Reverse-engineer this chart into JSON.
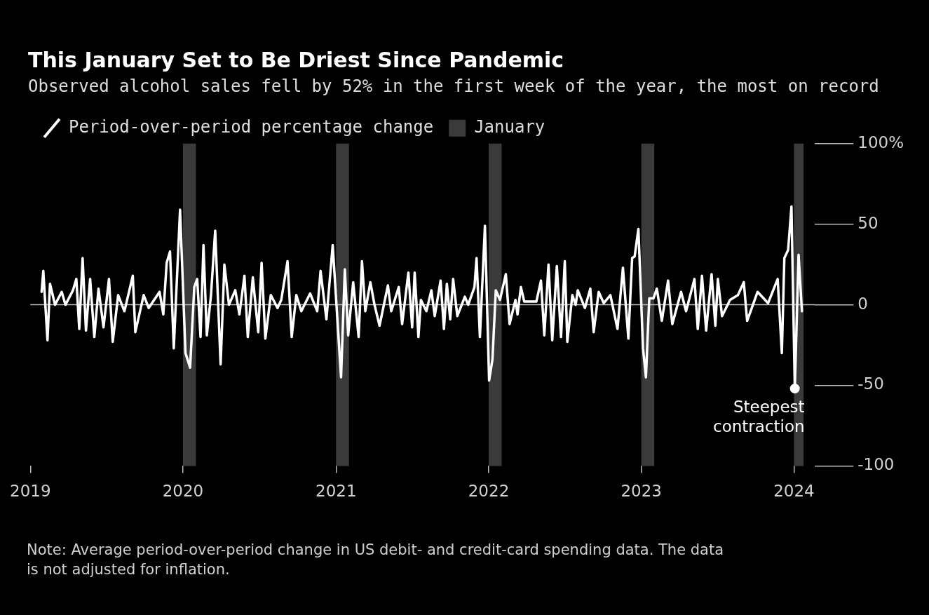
{
  "chart_data": {
    "type": "line",
    "title": "This January Set to Be Driest Since Pandemic",
    "subtitle": "Observed alcohol sales fell by 52% in the first week of the year, the most on record",
    "x": [
      "2019-01-28",
      "2019-02-01",
      "2019-02-11",
      "2019-02-17",
      "2019-03-01",
      "2019-03-17",
      "2019-03-26",
      "2019-04-13",
      "2019-04-21",
      "2019-04-28",
      "2019-05-06",
      "2019-05-14",
      "2019-05-24",
      "2019-06-03",
      "2019-06-13",
      "2019-06-25",
      "2019-07-08",
      "2019-07-17",
      "2019-07-30",
      "2019-08-14",
      "2019-09-03",
      "2019-09-09",
      "2019-09-29",
      "2019-10-11",
      "2019-11-06",
      "2019-11-15",
      "2019-11-23",
      "2019-12-01",
      "2019-12-10",
      "2019-12-25",
      "2020-01-07",
      "2020-01-18",
      "2020-01-28",
      "2020-02-04",
      "2020-02-12",
      "2020-02-19",
      "2020-02-27",
      "2020-03-08",
      "2020-03-18",
      "2020-03-31",
      "2020-04-09",
      "2020-04-20",
      "2020-05-05",
      "2020-05-15",
      "2020-05-27",
      "2020-06-04",
      "2020-06-16",
      "2020-06-29",
      "2020-07-07",
      "2020-07-16",
      "2020-07-29",
      "2020-08-14",
      "2020-08-23",
      "2020-09-07",
      "2020-09-17",
      "2020-09-28",
      "2020-10-10",
      "2020-10-31",
      "2020-11-17",
      "2020-11-25",
      "2020-12-09",
      "2020-12-24",
      "2021-01-13",
      "2021-01-22",
      "2021-01-30",
      "2021-02-11",
      "2021-02-24",
      "2021-03-04",
      "2021-03-12",
      "2021-03-24",
      "2021-04-03",
      "2021-04-15",
      "2021-05-05",
      "2021-05-13",
      "2021-05-31",
      "2021-06-08",
      "2021-06-23",
      "2021-07-02",
      "2021-07-08",
      "2021-07-17",
      "2021-07-23",
      "2021-08-05",
      "2021-08-17",
      "2021-08-25",
      "2021-09-08",
      "2021-09-16",
      "2021-09-23",
      "2021-10-01",
      "2021-10-08",
      "2021-10-18",
      "2021-11-05",
      "2021-11-13",
      "2021-11-28",
      "2021-12-03",
      "2021-12-11",
      "2021-12-23",
      "2022-01-02",
      "2022-01-10",
      "2022-01-18",
      "2022-01-28",
      "2022-02-11",
      "2022-02-20",
      "2022-03-06",
      "2022-03-11",
      "2022-03-19",
      "2022-03-27",
      "2022-04-25",
      "2022-05-06",
      "2022-05-14",
      "2022-05-24",
      "2022-06-02",
      "2022-06-13",
      "2022-06-23",
      "2022-07-02",
      "2022-07-08",
      "2022-07-20",
      "2022-07-28",
      "2022-08-02",
      "2022-08-19",
      "2022-09-01",
      "2022-09-09",
      "2022-09-21",
      "2022-10-03",
      "2022-10-19",
      "2022-11-05",
      "2022-11-18",
      "2022-12-01",
      "2022-12-10",
      "2022-12-16",
      "2022-12-25",
      "2023-01-05",
      "2023-01-12",
      "2023-01-20",
      "2023-01-30",
      "2023-02-07",
      "2023-02-19",
      "2023-03-06",
      "2023-03-16",
      "2023-04-06",
      "2023-04-18",
      "2023-05-08",
      "2023-05-16",
      "2023-05-26",
      "2023-06-05",
      "2023-06-18",
      "2023-06-27",
      "2023-07-03",
      "2023-07-13",
      "2023-08-01",
      "2023-08-20",
      "2023-09-03",
      "2023-09-11",
      "2023-10-06",
      "2023-10-31",
      "2023-11-23",
      "2023-12-03",
      "2023-12-09",
      "2023-12-18",
      "2023-12-26",
      "2024-01-03",
      "2024-01-12",
      "2024-01-20"
    ],
    "series": [
      {
        "name": "Period-over-period percentage change",
        "color": "#ffffff",
        "values": [
          8,
          21,
          -22,
          13,
          0,
          8,
          0,
          9,
          16,
          -15,
          29,
          -16,
          16,
          -20,
          10,
          -14,
          16,
          -23,
          6,
          -4,
          18,
          -17,
          6,
          -2,
          8,
          -6,
          26,
          33,
          -27,
          59,
          -30,
          -39,
          11,
          16,
          -20,
          37,
          -19,
          6,
          46,
          -37,
          25,
          0,
          9,
          -6,
          18,
          -20,
          17,
          -17,
          26,
          -21,
          6,
          -2,
          3,
          27,
          -20,
          6,
          -4,
          7,
          -4,
          21,
          -9,
          37,
          -45,
          22,
          -19,
          14,
          -20,
          27,
          -4,
          14,
          0,
          -13,
          12,
          -4,
          11,
          -12,
          20,
          -14,
          20,
          -20,
          3,
          -4,
          9,
          -7,
          15,
          -15,
          13,
          -9,
          16,
          -7,
          5,
          0,
          11,
          29,
          -20,
          49,
          -47,
          -34,
          9,
          3,
          19,
          -12,
          3,
          -6,
          11,
          2,
          2,
          15,
          -19,
          25,
          -22,
          24,
          -20,
          27,
          -23,
          6,
          0,
          9,
          -2,
          10,
          -17,
          8,
          1,
          6,
          -15,
          23,
          -21,
          29,
          30,
          47,
          -27,
          -45,
          4,
          4,
          10,
          -10,
          15,
          -12,
          8,
          -4,
          16,
          -15,
          18,
          -16,
          19,
          -13,
          16,
          -7,
          3,
          6,
          14,
          -10,
          8,
          1,
          16,
          -30,
          29,
          34,
          61,
          -52,
          31,
          -4
        ]
      }
    ],
    "bands": [
      {
        "axis": "x",
        "from": "2020-01-01",
        "to": "2020-02-01",
        "label": "January",
        "color": "#3a3a3a"
      },
      {
        "axis": "x",
        "from": "2021-01-01",
        "to": "2021-02-01",
        "color": "#3a3a3a"
      },
      {
        "axis": "x",
        "from": "2022-01-01",
        "to": "2022-02-01",
        "color": "#3a3a3a"
      },
      {
        "axis": "x",
        "from": "2023-01-01",
        "to": "2023-02-01",
        "color": "#3a3a3a"
      },
      {
        "axis": "x",
        "from": "2024-01-01",
        "to": "2024-01-24",
        "color": "#3a3a3a"
      }
    ],
    "ref_lines": [
      {
        "axis": "y",
        "value": 0,
        "color": "#bbbbbb"
      }
    ],
    "xlim": [
      "2019-01-01",
      "2024-02-20"
    ],
    "xticks": [
      "2019",
      "2020",
      "2021",
      "2022",
      "2023",
      "2024"
    ],
    "ylim": [
      -100,
      100
    ],
    "yticks": [
      {
        "value": 100,
        "label": "100%"
      },
      50,
      0,
      -50,
      -100
    ],
    "legend": "top left",
    "annotations": [
      {
        "text": "Steepest contraction",
        "x": "2024-01-03",
        "y": -52
      },
      "Note: Average period-over-period change in US debit- and credit-card spending data. The data is not adjusted for inflation."
    ]
  }
}
